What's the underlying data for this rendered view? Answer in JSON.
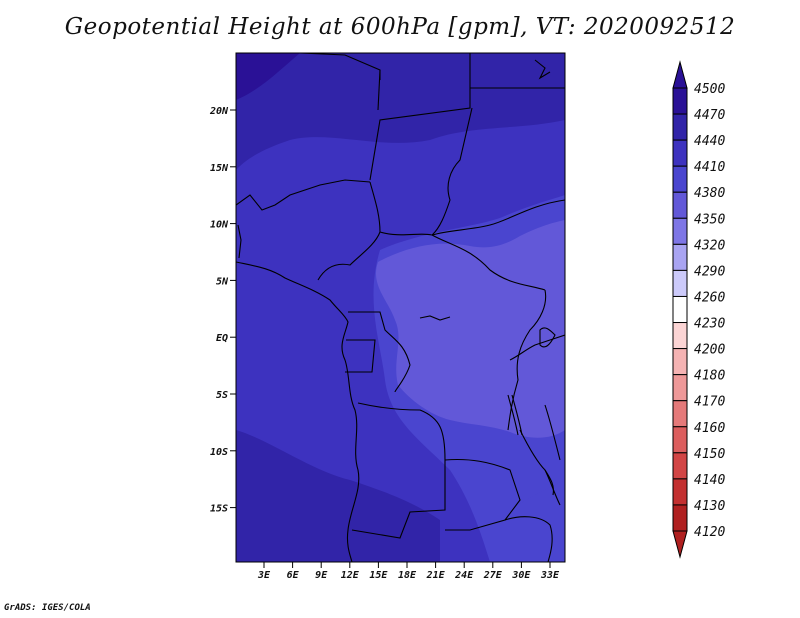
{
  "title": "Geopotential Height at 600hPa [gpm], VT: 2020092512",
  "credit": "GrADS: IGES/COLA",
  "map": {
    "lat_labels": [
      "20N",
      "15N",
      "10N",
      "5N",
      "EQ",
      "5S",
      "10S",
      "15S"
    ],
    "lon_labels": [
      "3E",
      "6E",
      "9E",
      "12E",
      "15E",
      "18E",
      "21E",
      "24E",
      "27E",
      "30E",
      "33E"
    ]
  },
  "colorbar": {
    "levels": [
      "4500",
      "4470",
      "4440",
      "4410",
      "4380",
      "4350",
      "4320",
      "4290",
      "4260",
      "4230",
      "4200",
      "4180",
      "4170",
      "4160",
      "4150",
      "4140",
      "4130",
      "4120"
    ],
    "colors": {
      "4470-4500": "#2a1196",
      "4440-4470": "#3124a8",
      "4410-4440": "#3d32bf",
      "4380-4410": "#4a45cf",
      "4350-4380": "#6258d8",
      "4320-4350": "#7e76e6",
      "4290-4320": "#a9a4f2",
      "4260-4290": "#cccafa",
      "4230-4260": "#ffffff",
      "4200-4230": "#fbd4d4",
      "4180-4200": "#f5b3b3",
      "4170-4180": "#ee9898",
      "4160-4170": "#e57a7a",
      "4150-4160": "#dc5e5e",
      "4140-4150": "#d24545",
      "4130-4140": "#c33030",
      "4120-4130": "#b02020"
    },
    "top_cap": "#2a1196",
    "bottom_cap": "#b02020"
  }
}
